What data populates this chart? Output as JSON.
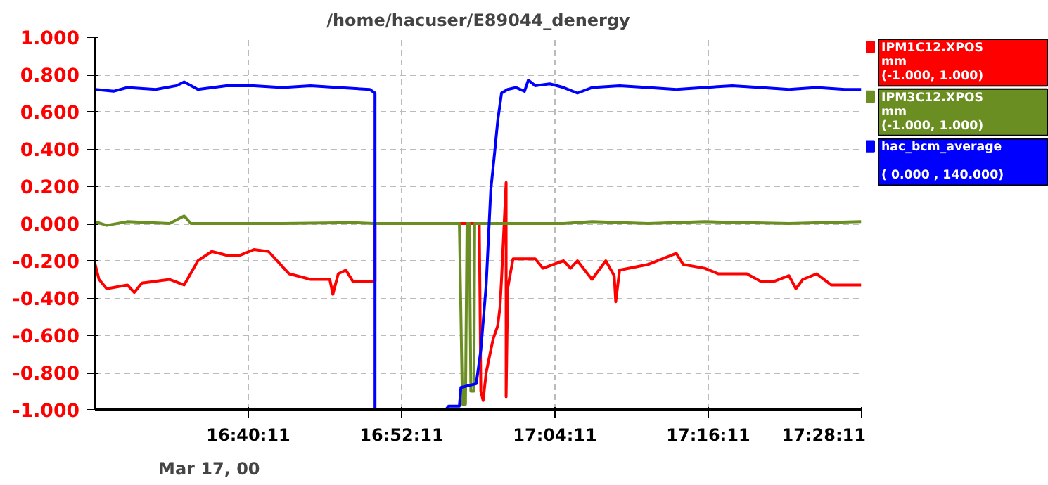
{
  "chart_data": {
    "type": "line",
    "title": "/home/hacuser/E89044_denergy",
    "xlim": [
      16.4697,
      17.4697
    ],
    "xticks": [
      {
        "value": 16.6697,
        "label": "16:40:11"
      },
      {
        "value": 16.8697,
        "label": "16:52:11"
      },
      {
        "value": 17.0697,
        "label": "17:04:11"
      },
      {
        "value": 17.2697,
        "label": "17:16:11"
      },
      {
        "value": 17.4697,
        "label": "17:28:11"
      }
    ],
    "ylim": [
      -1.0,
      1.0
    ],
    "yticks": [
      {
        "value": 1.0,
        "label": "1.000"
      },
      {
        "value": 0.8,
        "label": "0.800"
      },
      {
        "value": 0.6,
        "label": "0.600"
      },
      {
        "value": 0.4,
        "label": "0.400"
      },
      {
        "value": 0.2,
        "label": "0.200"
      },
      {
        "value": 0.0,
        "label": "0.000"
      },
      {
        "value": -0.2,
        "label": "-0.200"
      },
      {
        "value": -0.4,
        "label": "-0.400"
      },
      {
        "value": -0.6,
        "label": "-0.600"
      },
      {
        "value": -0.8,
        "label": "-0.800"
      },
      {
        "value": -1.0,
        "label": "-1.000"
      }
    ],
    "grid": true,
    "legend": "top right",
    "marker": "none",
    "line_style": "solid",
    "annotations": [
      "Mar 17, 00"
    ],
    "series": [
      {
        "name": "IPM1C12.XPOS\nmm\n(-1.000, 1.000)",
        "color": "#ff0000",
        "x": [
          16.47,
          16.475,
          16.485,
          16.512,
          16.521,
          16.531,
          16.567,
          16.586,
          16.604,
          16.622,
          16.641,
          16.659,
          16.677,
          16.696,
          16.723,
          16.751,
          16.776,
          16.78,
          16.787,
          16.797,
          16.806,
          16.835,
          16.835,
          16.971,
          16.973,
          16.976,
          16.98,
          16.989,
          16.995,
          16.998,
          17.0,
          17.006,
          17.006,
          17.008,
          17.011,
          17.015,
          17.044,
          17.054,
          17.081,
          17.09,
          17.099,
          17.118,
          17.127,
          17.136,
          17.147,
          17.149,
          17.154,
          17.191,
          17.228,
          17.237,
          17.265,
          17.283,
          17.32,
          17.338,
          17.356,
          17.375,
          17.384,
          17.393,
          17.411,
          17.43,
          17.448,
          17.469
        ],
        "values": [
          -0.22,
          -0.3,
          -0.35,
          -0.33,
          -0.37,
          -0.32,
          -0.3,
          -0.33,
          -0.2,
          -0.15,
          -0.17,
          -0.17,
          -0.14,
          -0.15,
          -0.27,
          -0.3,
          -0.3,
          -0.38,
          -0.27,
          -0.25,
          -0.31,
          -0.31,
          0.0,
          0.0,
          -0.9,
          -0.95,
          -0.8,
          -0.62,
          -0.55,
          -0.45,
          -0.3,
          0.22,
          -0.93,
          -0.35,
          -0.28,
          -0.19,
          -0.19,
          -0.24,
          -0.2,
          -0.24,
          -0.2,
          -0.3,
          -0.25,
          -0.2,
          -0.28,
          -0.42,
          -0.25,
          -0.22,
          -0.16,
          -0.22,
          -0.24,
          -0.27,
          -0.27,
          -0.31,
          -0.31,
          -0.28,
          -0.35,
          -0.3,
          -0.27,
          -0.33,
          -0.33,
          -0.33
        ]
      },
      {
        "name": "IPM3C12.XPOS\nmm\n(-1.000, 1.000)",
        "color": "#6b8e23",
        "x": [
          16.47,
          16.485,
          16.512,
          16.567,
          16.586,
          16.595,
          16.714,
          16.806,
          16.833,
          16.945,
          16.949,
          16.953,
          16.955,
          16.958,
          16.96,
          16.964,
          16.965,
          17.081,
          17.118,
          17.191,
          17.265,
          17.375,
          17.469
        ],
        "values": [
          0.01,
          -0.01,
          0.01,
          0.0,
          0.04,
          0.0,
          0.0,
          0.005,
          0.0,
          0.0,
          -0.97,
          -0.97,
          0.0,
          0.0,
          -0.9,
          -0.9,
          0.0,
          0.0,
          0.01,
          0.0,
          0.01,
          0.0,
          0.01
        ]
      },
      {
        "name": "hac_bcm_average\n\n( 0.000 , 140.000)",
        "color": "#0000ff",
        "x": [
          16.47,
          16.494,
          16.512,
          16.549,
          16.576,
          16.586,
          16.604,
          16.641,
          16.677,
          16.714,
          16.751,
          16.787,
          16.828,
          16.835,
          16.835,
          16.927,
          16.931,
          16.945,
          16.947,
          16.967,
          16.973,
          16.98,
          16.986,
          16.991,
          16.995,
          17.0,
          17.008,
          17.019,
          17.03,
          17.035,
          17.044,
          17.063,
          17.081,
          17.099,
          17.118,
          17.154,
          17.191,
          17.228,
          17.265,
          17.301,
          17.338,
          17.375,
          17.411,
          17.448,
          17.469
        ],
        "values": [
          0.72,
          0.71,
          0.73,
          0.72,
          0.74,
          0.76,
          0.72,
          0.74,
          0.74,
          0.73,
          0.74,
          0.73,
          0.72,
          0.7,
          -1.0,
          -1.0,
          -0.98,
          -0.98,
          -0.88,
          -0.86,
          -0.68,
          -0.33,
          0.18,
          0.38,
          0.55,
          0.7,
          0.72,
          0.73,
          0.71,
          0.77,
          0.74,
          0.75,
          0.73,
          0.7,
          0.73,
          0.74,
          0.73,
          0.72,
          0.73,
          0.74,
          0.73,
          0.72,
          0.73,
          0.72,
          0.72
        ]
      }
    ]
  }
}
